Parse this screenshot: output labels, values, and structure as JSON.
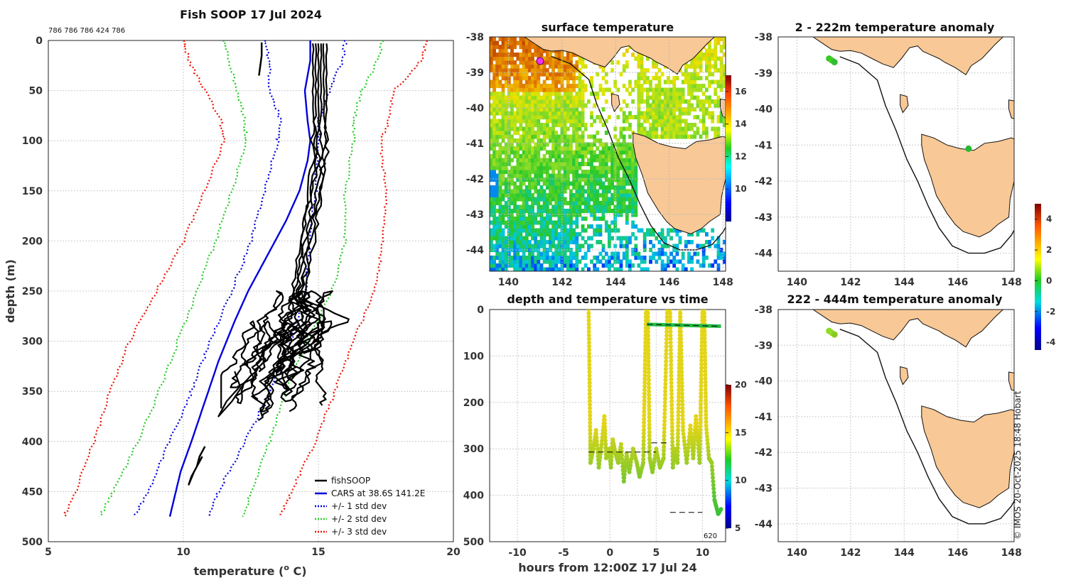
{
  "chart_data": [
    {
      "id": "profile",
      "type": "line",
      "title": "Fish SOOP 17 Jul 2024",
      "top_annotation": "786 786 786 424 786",
      "xlabel": "temperature (",
      "xlabel_sup": "o",
      "xlabel_end": " C)",
      "ylabel": "depth (m)",
      "xlim": [
        5,
        20
      ],
      "ylim": [
        500,
        0
      ],
      "xticks": [
        5,
        10,
        15,
        20
      ],
      "yticks": [
        0,
        50,
        100,
        150,
        200,
        250,
        300,
        350,
        400,
        450,
        500
      ],
      "legend": [
        "fishSOOP",
        "CARS at 38.6S 141.2E",
        "+/- 1 std dev",
        "+/- 2 std dev",
        "+/- 3 std dev"
      ],
      "colors": {
        "fish": "#000000",
        "cars": "#0000dd",
        "sd1": "#0000dd",
        "sd2": "#22cc22",
        "sd3": "#ee1100"
      },
      "series": [
        {
          "name": "CARS",
          "depth": [
            0,
            20,
            50,
            80,
            100,
            120,
            150,
            180,
            210,
            230,
            250,
            280,
            320,
            360,
            400,
            430,
            475
          ],
          "temp": [
            14.7,
            14.7,
            14.5,
            14.6,
            14.7,
            14.6,
            14.3,
            13.8,
            13.2,
            12.8,
            12.4,
            11.9,
            11.3,
            10.8,
            10.3,
            9.9,
            9.5
          ]
        },
        {
          "name": "+1 sd",
          "depth": [
            0,
            20,
            50,
            80,
            100,
            150,
            200,
            250,
            300,
            350,
            400,
            450,
            475
          ],
          "temp": [
            16.0,
            15.9,
            15.4,
            15.0,
            15.0,
            14.9,
            14.7,
            14.5,
            14.0,
            13.2,
            12.3,
            11.3,
            10.9
          ]
        },
        {
          "name": "-1 sd",
          "depth": [
            0,
            20,
            50,
            80,
            100,
            150,
            200,
            250,
            300,
            350,
            400,
            450,
            475
          ],
          "temp": [
            13.0,
            13.2,
            13.2,
            13.6,
            13.5,
            13.0,
            12.5,
            11.8,
            11.0,
            10.3,
            9.5,
            8.7,
            8.2
          ]
        },
        {
          "name": "+2 sd",
          "depth": [
            0,
            20,
            50,
            80,
            100,
            150,
            200,
            250,
            300,
            350,
            400,
            450,
            475
          ],
          "temp": [
            17.4,
            17.2,
            16.6,
            16.3,
            16.3,
            16.0,
            16.0,
            15.5,
            14.6,
            13.8,
            13.2,
            12.5,
            12.2
          ]
        },
        {
          "name": "-2 sd",
          "depth": [
            0,
            20,
            50,
            80,
            100,
            150,
            200,
            250,
            300,
            350,
            400,
            450,
            475
          ],
          "temp": [
            11.5,
            11.7,
            12.0,
            12.3,
            12.3,
            11.8,
            11.2,
            10.5,
            9.8,
            9.1,
            8.3,
            7.4,
            6.9
          ]
        },
        {
          "name": "+3 sd",
          "depth": [
            0,
            20,
            50,
            80,
            100,
            150,
            200,
            250,
            300,
            350,
            400,
            450,
            475
          ],
          "temp": [
            19.0,
            18.8,
            17.8,
            17.6,
            17.3,
            17.5,
            17.4,
            17.1,
            16.3,
            15.6,
            14.9,
            14.0,
            13.6
          ]
        },
        {
          "name": "-3 sd",
          "depth": [
            0,
            20,
            50,
            80,
            100,
            150,
            200,
            250,
            300,
            350,
            400,
            450,
            475
          ],
          "temp": [
            10.0,
            10.2,
            10.8,
            11.4,
            11.5,
            10.8,
            10.0,
            9.0,
            8.0,
            7.3,
            6.7,
            6.0,
            5.6
          ]
        }
      ]
    },
    {
      "id": "sst",
      "type": "heatmap",
      "title": "surface temperature",
      "xticks": [
        140,
        142,
        144,
        146,
        148
      ],
      "yticks": [
        -38,
        -39,
        -40,
        -41,
        -42,
        -43,
        -44
      ],
      "xlim": [
        139.3,
        148.1
      ],
      "ylim": [
        -44.6,
        -38
      ],
      "colorbar_ticks": [
        16,
        14,
        12,
        10
      ],
      "colorbar_range": [
        8,
        17
      ]
    },
    {
      "id": "timeseries",
      "type": "scatter",
      "title": "depth and temperature vs time",
      "xlabel": "hours from 12:00Z 17 Jul 24",
      "xticks": [
        -10,
        -5,
        0,
        5,
        10
      ],
      "yticks": [
        0,
        100,
        200,
        300,
        400,
        500
      ],
      "xlim": [
        -13,
        12.5
      ],
      "ylim": [
        500,
        0
      ],
      "colorbar_ticks": [
        20,
        15,
        10,
        5
      ],
      "colorbar_range": [
        5,
        20
      ],
      "annotation": "620"
    },
    {
      "id": "anom_shallow",
      "type": "scatter",
      "title": "2 - 222m temperature anomaly",
      "xticks": [
        140,
        142,
        144,
        146,
        148
      ],
      "yticks": [
        -38,
        -39,
        -40,
        -41,
        -42,
        -43,
        -44
      ],
      "xlim": [
        139.3,
        148.1
      ],
      "ylim": [
        -44.5,
        -38
      ]
    },
    {
      "id": "anom_deep",
      "type": "scatter",
      "title": "222 - 444m temperature anomaly",
      "xticks": [
        140,
        142,
        144,
        146,
        148
      ],
      "yticks": [
        -38,
        -39,
        -40,
        -41,
        -42,
        -43,
        -44
      ],
      "xlim": [
        139.3,
        148.1
      ],
      "ylim": [
        -44.5,
        -38
      ]
    },
    {
      "id": "anom_colorbar",
      "type": "heatmap",
      "colorbar_ticks": [
        4,
        2,
        0,
        -2,
        -4
      ],
      "colorbar_range": [
        -4.5,
        5
      ]
    }
  ],
  "credit": "© IMOS 20-Oct-2025 18:48 Hobart"
}
